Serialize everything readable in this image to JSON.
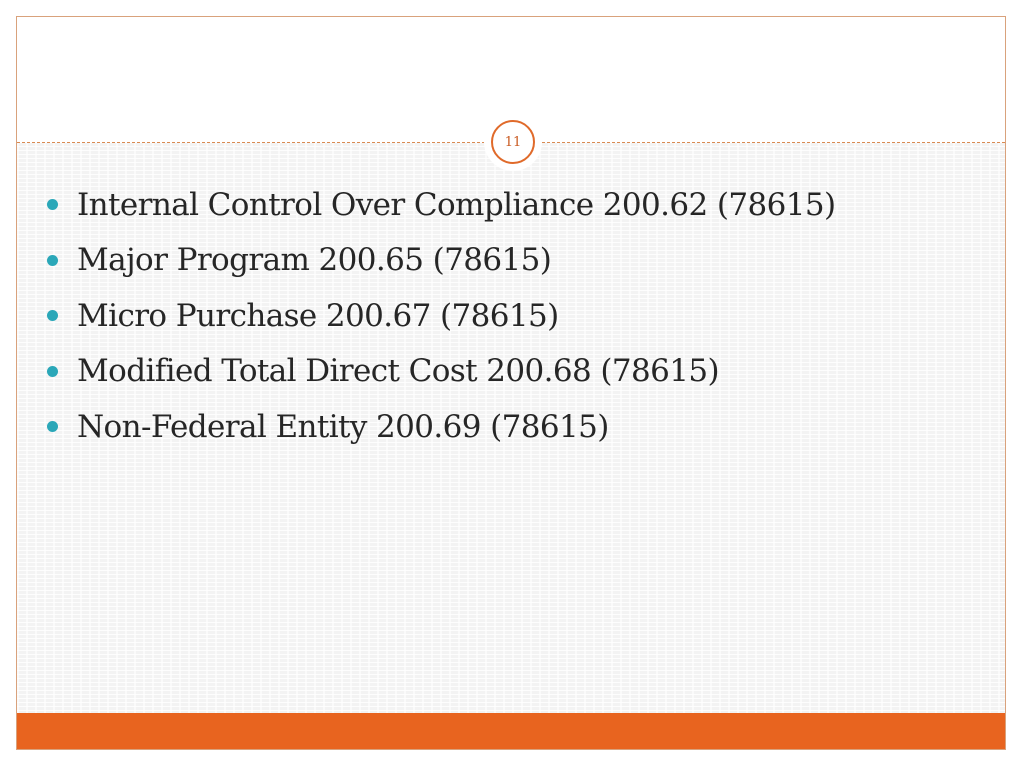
{
  "slide": {
    "page_number": "11",
    "bullets": [
      "Internal Control Over Compliance 200.62 (78615)",
      "Major Program 200.65 (78615)",
      "Micro Purchase 200.67 (78615)",
      "Modified Total Direct Cost 200.68 (78615)",
      "Non-Federal Entity 200.69 (78615)"
    ]
  },
  "colors": {
    "accent_orange": "#e8641f",
    "bullet_teal": "#2aa7b8",
    "text": "#262626"
  }
}
